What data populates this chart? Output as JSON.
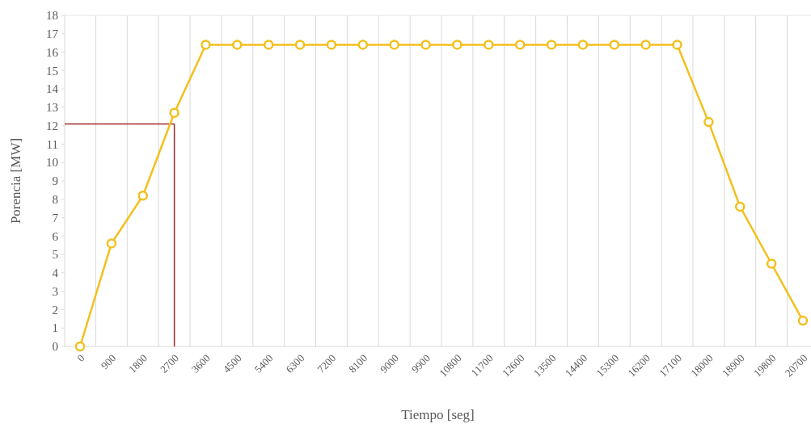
{
  "chart_data": {
    "type": "line",
    "xlabel": "Tiempo [seg]",
    "ylabel": "Porencia [MW]",
    "categories": [
      "0",
      "900",
      "1800",
      "2700",
      "3600",
      "4500",
      "5400",
      "6300",
      "7200",
      "8100",
      "9000",
      "9900",
      "10800",
      "11700",
      "12600",
      "13500",
      "14400",
      "15300",
      "16200",
      "17100",
      "18000",
      "18900",
      "19800",
      "20700"
    ],
    "series": [
      {
        "color": "#f2c01e",
        "values": [
          0,
          5.6,
          8.2,
          12.7,
          16.4,
          16.4,
          16.4,
          16.4,
          16.4,
          16.4,
          16.4,
          16.4,
          16.4,
          16.4,
          16.4,
          16.4,
          16.4,
          16.4,
          16.4,
          16.4,
          12.2,
          7.6,
          4.5,
          1.4
        ]
      }
    ],
    "ylim": [
      0,
      18
    ],
    "yticks": [
      0,
      1,
      2,
      3,
      4,
      5,
      6,
      7,
      8,
      9,
      10,
      11,
      12,
      13,
      14,
      15,
      16,
      17,
      18
    ],
    "grid": "x",
    "marker": "circle",
    "ref_lines": [
      {
        "axis": "y",
        "value": 12.1,
        "color": "#9e2a2b"
      },
      {
        "axis": "x",
        "value": "2700",
        "color": "#9e2a2b"
      }
    ]
  }
}
